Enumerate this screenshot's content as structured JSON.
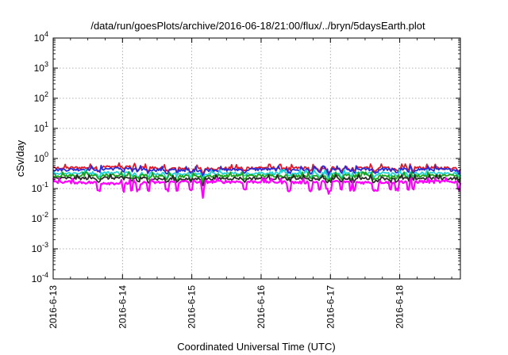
{
  "chart_data": {
    "type": "line",
    "title": "/data/run/goesPlots/archive/2016-06-18/21:00/flux/../bryn/5daysEarth.plot",
    "xlabel": "Coordinated Universal Time (UTC)",
    "ylabel": "cSv/day",
    "xlim": [
      "2016-06-13",
      "2016-06-18 21:00"
    ],
    "ylim": [
      0.0001,
      10000
    ],
    "y_scale": "log",
    "grid": true,
    "x_ticks": [
      "2016-6-13",
      "2016-6-14",
      "2016-6-15",
      "2016-6-16",
      "2016-6-17",
      "2016-6-18"
    ],
    "y_ticks": [
      {
        "value": 0.0001,
        "base": "10",
        "exp": "-4"
      },
      {
        "value": 0.001,
        "base": "10",
        "exp": "-3"
      },
      {
        "value": 0.01,
        "base": "10",
        "exp": "-2"
      },
      {
        "value": 0.1,
        "base": "10",
        "exp": "-1"
      },
      {
        "value": 1,
        "base": "10",
        "exp": "0"
      },
      {
        "value": 10,
        "base": "10",
        "exp": "1"
      },
      {
        "value": 100,
        "base": "10",
        "exp": "2"
      },
      {
        "value": 1000,
        "base": "10",
        "exp": "3"
      },
      {
        "value": 10000,
        "base": "10",
        "exp": "4"
      }
    ],
    "series": [
      {
        "color": "#e0192a",
        "level": 0.48,
        "points": [
          [
            "2016-06-13",
            0.48
          ],
          [
            "2016-06-13 12:00",
            0.5
          ],
          [
            "2016-06-14",
            0.55
          ],
          [
            "2016-06-14 12:00",
            0.48
          ],
          [
            "2016-06-15",
            0.46
          ],
          [
            "2016-06-15 12:00",
            0.47
          ],
          [
            "2016-06-16",
            0.5
          ],
          [
            "2016-06-16 12:00",
            0.48
          ],
          [
            "2016-06-17",
            0.49
          ],
          [
            "2016-06-17 12:00",
            0.5
          ],
          [
            "2016-06-18",
            0.5
          ],
          [
            "2016-06-18 12:00",
            0.49
          ],
          [
            "2016-06-18 21:00",
            0.48
          ]
        ]
      },
      {
        "color": "#2b2bd6",
        "level": 0.42,
        "points": [
          [
            "2016-06-13",
            0.42
          ],
          [
            "2016-06-13 12:00",
            0.44
          ],
          [
            "2016-06-14",
            0.47
          ],
          [
            "2016-06-14 12:00",
            0.42
          ],
          [
            "2016-06-15",
            0.41
          ],
          [
            "2016-06-15 12:00",
            0.42
          ],
          [
            "2016-06-16",
            0.44
          ],
          [
            "2016-06-16 12:00",
            0.42
          ],
          [
            "2016-06-17",
            0.43
          ],
          [
            "2016-06-17 12:00",
            0.44
          ],
          [
            "2016-06-18",
            0.44
          ],
          [
            "2016-06-18 12:00",
            0.43
          ],
          [
            "2016-06-18 21:00",
            0.42
          ]
        ]
      },
      {
        "color": "#22d3d3",
        "level": 0.32,
        "points": [
          [
            "2016-06-13",
            0.32
          ],
          [
            "2016-06-13 12:00",
            0.33
          ],
          [
            "2016-06-14",
            0.34
          ],
          [
            "2016-06-14 12:00",
            0.31
          ],
          [
            "2016-06-15",
            0.31
          ],
          [
            "2016-06-15 12:00",
            0.32
          ],
          [
            "2016-06-16",
            0.33
          ],
          [
            "2016-06-16 12:00",
            0.32
          ],
          [
            "2016-06-17",
            0.32
          ],
          [
            "2016-06-17 12:00",
            0.33
          ],
          [
            "2016-06-18",
            0.33
          ],
          [
            "2016-06-18 12:00",
            0.32
          ],
          [
            "2016-06-18 21:00",
            0.32
          ]
        ]
      },
      {
        "color": "#1aa31a",
        "level": 0.27,
        "points": [
          [
            "2016-06-13",
            0.27
          ],
          [
            "2016-06-13 12:00",
            0.27
          ],
          [
            "2016-06-14",
            0.28
          ],
          [
            "2016-06-14 12:00",
            0.26
          ],
          [
            "2016-06-15",
            0.26
          ],
          [
            "2016-06-15 12:00",
            0.27
          ],
          [
            "2016-06-16",
            0.27
          ],
          [
            "2016-06-16 12:00",
            0.27
          ],
          [
            "2016-06-17",
            0.27
          ],
          [
            "2016-06-17 12:00",
            0.27
          ],
          [
            "2016-06-18",
            0.27
          ],
          [
            "2016-06-18 12:00",
            0.27
          ],
          [
            "2016-06-18 21:00",
            0.27
          ]
        ]
      },
      {
        "color": "#2a2a2a",
        "level": 0.22,
        "points": [
          [
            "2016-06-13",
            0.22
          ],
          [
            "2016-06-13 12:00",
            0.22
          ],
          [
            "2016-06-14",
            0.23
          ],
          [
            "2016-06-14 12:00",
            0.21
          ],
          [
            "2016-06-15",
            0.21
          ],
          [
            "2016-06-15 12:00",
            0.22
          ],
          [
            "2016-06-16",
            0.22
          ],
          [
            "2016-06-16 12:00",
            0.22
          ],
          [
            "2016-06-17",
            0.22
          ],
          [
            "2016-06-17 12:00",
            0.22
          ],
          [
            "2016-06-18",
            0.22
          ],
          [
            "2016-06-18 12:00",
            0.22
          ],
          [
            "2016-06-18 21:00",
            0.22
          ]
        ]
      },
      {
        "color": "#ff00ff",
        "level": 0.17,
        "points": [
          [
            "2016-06-13",
            0.17
          ],
          [
            "2016-06-13 12:00",
            0.16
          ],
          [
            "2016-06-14",
            0.15
          ],
          [
            "2016-06-14 12:00",
            0.16
          ],
          [
            "2016-06-15",
            0.17
          ],
          [
            "2016-06-15 12:00",
            0.17
          ],
          [
            "2016-06-16",
            0.17
          ],
          [
            "2016-06-16 12:00",
            0.16
          ],
          [
            "2016-06-17",
            0.17
          ],
          [
            "2016-06-17 12:00",
            0.16
          ],
          [
            "2016-06-18",
            0.17
          ],
          [
            "2016-06-18 12:00",
            0.17
          ],
          [
            "2016-06-18 21:00",
            0.17
          ]
        ]
      }
    ]
  }
}
